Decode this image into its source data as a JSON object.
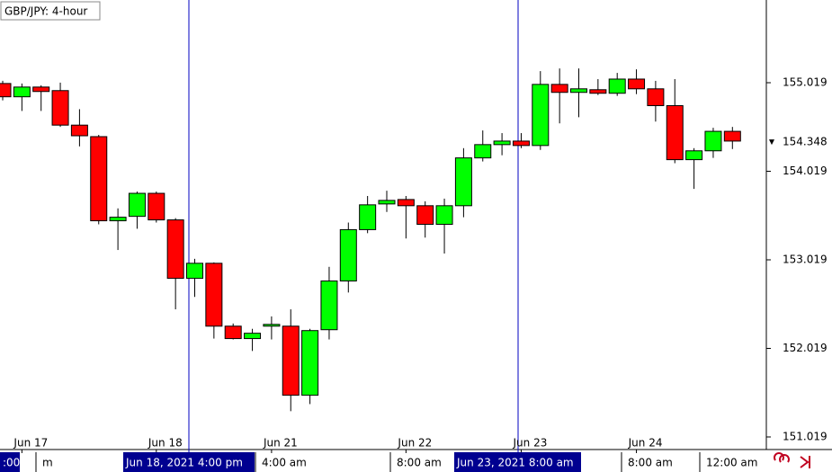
{
  "chart_data": {
    "type": "candlestick",
    "title": "GBP/JPY: 4-hour",
    "categories": [
      null,
      "Jun 17",
      null,
      null,
      null,
      null,
      null,
      null,
      "Jun 18",
      null,
      null,
      null,
      null,
      null,
      "Jun 21",
      null,
      null,
      null,
      null,
      null,
      null,
      "Jun 22",
      null,
      null,
      null,
      null,
      null,
      "Jun 23",
      null,
      null,
      null,
      null,
      null,
      "Jun 24",
      null,
      null,
      null,
      null,
      null
    ],
    "open": [
      155.01,
      154.86,
      154.97,
      154.93,
      154.54,
      154.41,
      153.46,
      153.51,
      153.77,
      153.47,
      152.81,
      152.98,
      152.27,
      152.13,
      152.27,
      152.27,
      151.49,
      152.23,
      152.78,
      153.36,
      153.65,
      153.7,
      153.63,
      153.42,
      153.63,
      154.17,
      154.32,
      154.36,
      154.31,
      155.0,
      154.91,
      154.94,
      154.9,
      155.06,
      154.95,
      154.76,
      154.15,
      154.25,
      154.47
    ],
    "high": [
      155.04,
      155.01,
      154.99,
      155.02,
      154.72,
      154.43,
      153.6,
      153.79,
      153.79,
      153.49,
      153.03,
      152.99,
      152.3,
      152.24,
      152.38,
      152.46,
      152.24,
      152.94,
      153.44,
      153.74,
      153.8,
      153.74,
      153.68,
      153.71,
      154.28,
      154.48,
      154.45,
      154.45,
      155.15,
      155.18,
      155.18,
      155.06,
      155.13,
      155.17,
      155.04,
      155.06,
      154.28,
      154.51,
      154.52
    ],
    "low": [
      154.82,
      154.7,
      154.7,
      154.52,
      154.3,
      153.42,
      153.13,
      153.37,
      153.44,
      152.46,
      152.6,
      152.13,
      152.12,
      151.99,
      152.12,
      151.31,
      151.39,
      152.12,
      152.65,
      153.32,
      153.56,
      153.26,
      153.27,
      153.09,
      153.5,
      154.13,
      154.2,
      154.28,
      154.26,
      154.56,
      154.63,
      154.88,
      154.87,
      154.89,
      154.58,
      154.11,
      153.82,
      154.17,
      154.27
    ],
    "close": [
      154.86,
      154.97,
      154.92,
      154.54,
      154.42,
      153.46,
      153.5,
      153.77,
      153.47,
      152.81,
      152.98,
      152.27,
      152.13,
      152.19,
      152.29,
      151.49,
      152.22,
      152.78,
      153.36,
      153.64,
      153.69,
      153.63,
      153.42,
      153.63,
      154.17,
      154.32,
      154.36,
      154.31,
      155.0,
      154.91,
      154.95,
      154.9,
      155.06,
      154.95,
      154.76,
      154.15,
      154.25,
      154.47,
      154.36
    ],
    "up_color": "#00ff00",
    "down_color": "#ff0000",
    "ylim": [
      150.877,
      155.953
    ],
    "yticks": [
      151.019,
      152.019,
      153.019,
      154.019,
      155.019
    ],
    "last_price": 154.348,
    "time_bar": [
      ":00",
      "m",
      "Jun 18, 2021 4:00 pm",
      "4:00 am",
      "8:00 am",
      "Jun 23, 2021 8:00 am",
      "8:00 am",
      "12:00 am"
    ]
  }
}
